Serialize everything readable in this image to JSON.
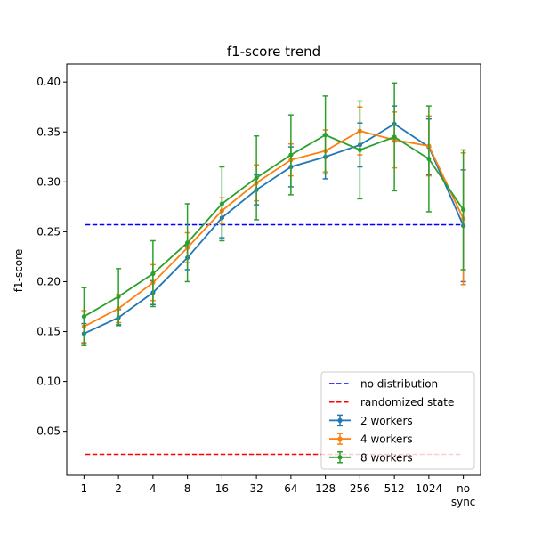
{
  "chart_data": {
    "type": "line",
    "title": "f1-score trend",
    "xlabel": "",
    "ylabel": "f1-score",
    "categories": [
      "1",
      "2",
      "4",
      "8",
      "16",
      "32",
      "64",
      "128",
      "256",
      "512",
      "1024",
      "no sync"
    ],
    "ylim": [
      0.006,
      0.418
    ],
    "yticks": [
      0.05,
      0.1,
      0.15,
      0.2,
      0.25,
      0.3,
      0.35,
      0.4
    ],
    "ytick_labels": [
      "0.05",
      "0.10",
      "0.15",
      "0.20",
      "0.25",
      "0.30",
      "0.35",
      "0.40"
    ],
    "grid": false,
    "legend_position": "lower-right",
    "reference_lines": [
      {
        "name": "no distribution",
        "value": 0.257,
        "color": "#0000ff",
        "dash": true
      },
      {
        "name": "randomized state",
        "value": 0.027,
        "color": "#ff0000",
        "dash": true
      }
    ],
    "series": [
      {
        "name": "2 workers",
        "color": "#1f77b4",
        "values": [
          0.148,
          0.164,
          0.189,
          0.224,
          0.264,
          0.292,
          0.315,
          0.325,
          0.337,
          0.358,
          0.335,
          0.256
        ],
        "errors": [
          0.01,
          0.008,
          0.012,
          0.012,
          0.02,
          0.015,
          0.02,
          0.022,
          0.022,
          0.018,
          0.028,
          0.056
        ]
      },
      {
        "name": "4 workers",
        "color": "#ff7f0e",
        "values": [
          0.155,
          0.173,
          0.199,
          0.234,
          0.271,
          0.299,
          0.322,
          0.331,
          0.351,
          0.342,
          0.336,
          0.263
        ],
        "errors": [
          0.016,
          0.014,
          0.018,
          0.015,
          0.013,
          0.018,
          0.016,
          0.021,
          0.024,
          0.028,
          0.03,
          0.066
        ]
      },
      {
        "name": "8 workers",
        "color": "#2ca02c",
        "values": [
          0.165,
          0.185,
          0.208,
          0.239,
          0.278,
          0.304,
          0.327,
          0.347,
          0.332,
          0.345,
          0.323,
          0.272
        ],
        "errors": [
          0.029,
          0.028,
          0.033,
          0.039,
          0.037,
          0.042,
          0.04,
          0.039,
          0.049,
          0.054,
          0.053,
          0.06
        ]
      }
    ]
  }
}
